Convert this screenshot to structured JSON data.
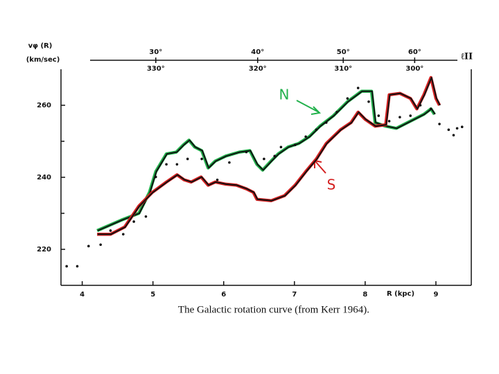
{
  "chart_data": {
    "type": "line",
    "caption": "The Galactic rotation curve (from Kerr 1964).",
    "ylabel": "vφ (R)",
    "ylabel_units": "(km/sec)",
    "xlabel": "R (kpc)",
    "top_axis_label": "ℓII",
    "xlim": [
      3.7,
      9.5
    ],
    "xticks": [
      4,
      5,
      6,
      7,
      8,
      9
    ],
    "ylim": [
      210,
      270
    ],
    "yticks": [
      220,
      240,
      260
    ],
    "yminor": [
      230,
      250
    ],
    "top_ticks": [
      {
        "value": 5.04,
        "label": "30°"
      },
      {
        "value": 6.48,
        "label": "40°"
      },
      {
        "value": 7.69,
        "label": "50°"
      },
      {
        "value": 8.7,
        "label": "60°"
      }
    ],
    "top_ticks_lower": [
      {
        "value": 5.04,
        "label": "330°"
      },
      {
        "value": 6.48,
        "label": "320°"
      },
      {
        "value": 7.69,
        "label": "310°"
      },
      {
        "value": 8.7,
        "label": "300°"
      }
    ],
    "series": [
      {
        "name": "N",
        "color": "#22b14c",
        "x": [
          4.21,
          4.55,
          4.8,
          4.95,
          5.04,
          5.19,
          5.33,
          5.43,
          5.51,
          5.59,
          5.69,
          5.78,
          5.88,
          6.03,
          6.22,
          6.37,
          6.47,
          6.55,
          6.67,
          6.77,
          6.91,
          7.06,
          7.21,
          7.36,
          7.55,
          7.75,
          7.95,
          8.09,
          8.14,
          8.29,
          8.44,
          8.64,
          8.83,
          8.93,
          8.98
        ],
        "values": [
          225.2,
          228.1,
          230.0,
          235.8,
          241.6,
          246.5,
          247.0,
          249.0,
          250.3,
          248.4,
          247.4,
          242.6,
          244.5,
          245.9,
          247.0,
          247.4,
          243.6,
          242.0,
          244.5,
          246.5,
          248.4,
          249.4,
          251.3,
          254.2,
          257.1,
          261.0,
          263.9,
          263.9,
          255.2,
          254.2,
          253.6,
          255.6,
          257.5,
          259.0,
          257.5
        ]
      },
      {
        "name": "S",
        "color": "#d42020",
        "x": [
          4.21,
          4.4,
          4.6,
          4.8,
          4.99,
          5.19,
          5.34,
          5.44,
          5.54,
          5.68,
          5.78,
          5.88,
          6.03,
          6.18,
          6.32,
          6.42,
          6.47,
          6.67,
          6.86,
          7.01,
          7.16,
          7.31,
          7.45,
          7.65,
          7.8,
          7.9,
          8.0,
          8.14,
          8.29,
          8.34,
          8.49,
          8.64,
          8.73,
          8.83,
          8.93,
          9.0,
          9.05
        ],
        "values": [
          224.2,
          224.2,
          226.2,
          232.0,
          235.8,
          238.7,
          240.7,
          239.3,
          238.7,
          240.1,
          237.8,
          238.7,
          238.1,
          237.8,
          236.8,
          235.8,
          233.9,
          233.5,
          234.9,
          237.8,
          241.6,
          245.1,
          249.4,
          253.2,
          255.2,
          258.1,
          256.1,
          254.2,
          254.6,
          262.9,
          263.3,
          261.9,
          259.0,
          262.9,
          267.7,
          261.9,
          260.0
        ]
      }
    ],
    "points": {
      "x": [
        3.78,
        3.93,
        4.09,
        4.26,
        4.4,
        4.58,
        4.73,
        4.9,
        5.04,
        5.19,
        5.34,
        5.49,
        5.69,
        5.91,
        6.08,
        6.32,
        6.57,
        6.72,
        6.81,
        7.01,
        7.16,
        7.31,
        7.45,
        7.6,
        7.75,
        7.9,
        8.05,
        8.19,
        8.34,
        8.49,
        8.64,
        8.78,
        8.93,
        9.05,
        9.18,
        9.25,
        9.3,
        9.37
      ],
      "values": [
        215.3,
        215.3,
        220.9,
        221.3,
        225.2,
        224.2,
        227.7,
        229.1,
        240.1,
        243.6,
        243.6,
        245.1,
        245.1,
        239.3,
        244.1,
        247.0,
        245.1,
        245.9,
        248.4,
        249.0,
        251.3,
        253.2,
        255.2,
        258.1,
        261.9,
        264.8,
        261.0,
        257.1,
        255.6,
        256.7,
        257.1,
        260.0,
        259.0,
        254.8,
        253.2,
        251.7,
        253.6,
        254.0
      ]
    }
  }
}
